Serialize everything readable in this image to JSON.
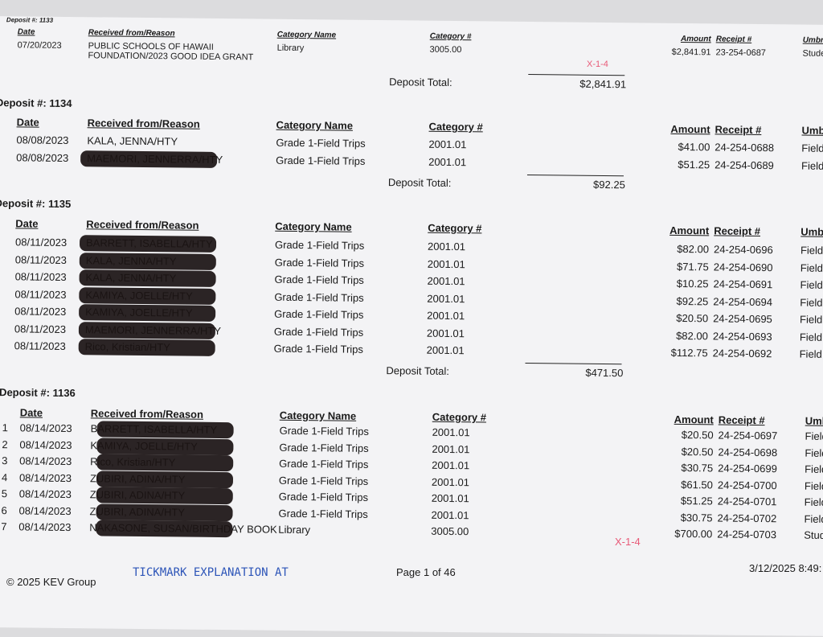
{
  "columns": {
    "date": "Date",
    "received": "Received from/Reason",
    "cat_name": "Category Name",
    "cat_num": "Category #",
    "amount": "Amount",
    "receipt": "Receipt #",
    "umbrella": "Umbrella"
  },
  "deposits": [
    {
      "label": "Deposit #: 1133",
      "total_label": "Deposit Total:",
      "total": "$2,841.91",
      "rows": [
        {
          "n": "",
          "date": "07/20/2023",
          "received": "PUBLIC SCHOOLS OF HAWAII FOUNDATION/2023 GOOD IDEA GRANT",
          "cat_name": "Library",
          "cat_num": "3005.00",
          "amount": "$2,841.91",
          "receipt": "23-254-0687",
          "umbrella": "Student Activity"
        }
      ]
    },
    {
      "label": "Deposit #: 1134",
      "total_label": "Deposit Total:",
      "total": "$92.25",
      "rows": [
        {
          "n": "",
          "date": "08/08/2023",
          "received": "KALA, JENNA/HTY",
          "cat_name": "Grade 1-Field Trips",
          "cat_num": "2001.01",
          "amount": "$41.00",
          "receipt": "24-254-0688",
          "umbrella": "Field Trips"
        },
        {
          "n": "",
          "date": "08/08/2023",
          "received": "MAEMORI, JENNERRA/HTY",
          "cat_name": "Grade 1-Field Trips",
          "cat_num": "2001.01",
          "amount": "$51.25",
          "receipt": "24-254-0689",
          "umbrella": "Field Trips"
        }
      ]
    },
    {
      "label": "Deposit #: 1135",
      "total_label": "Deposit Total:",
      "total": "$471.50",
      "rows": [
        {
          "n": "",
          "date": "08/11/2023",
          "received": "BARRETT, ISABELLA/HTY",
          "cat_name": "Grade 1-Field Trips",
          "cat_num": "2001.01",
          "amount": "$82.00",
          "receipt": "24-254-0696",
          "umbrella": "Field Trips"
        },
        {
          "n": "",
          "date": "08/11/2023",
          "received": "KALA, JENNA/HTY",
          "cat_name": "Grade 1-Field Trips",
          "cat_num": "2001.01",
          "amount": "$71.75",
          "receipt": "24-254-0690",
          "umbrella": "Field Trips"
        },
        {
          "n": "",
          "date": "08/11/2023",
          "received": "KALA, JENNA/HTY",
          "cat_name": "Grade 1-Field Trips",
          "cat_num": "2001.01",
          "amount": "$10.25",
          "receipt": "24-254-0691",
          "umbrella": "Field Trips"
        },
        {
          "n": "",
          "date": "08/11/2023",
          "received": "KAMIYA, JOELLE/HTY",
          "cat_name": "Grade 1-Field Trips",
          "cat_num": "2001.01",
          "amount": "$92.25",
          "receipt": "24-254-0694",
          "umbrella": "Field Trips"
        },
        {
          "n": "",
          "date": "08/11/2023",
          "received": "KAMIYA, JOELLE/HTY",
          "cat_name": "Grade 1-Field Trips",
          "cat_num": "2001.01",
          "amount": "$20.50",
          "receipt": "24-254-0695",
          "umbrella": "Field Trips"
        },
        {
          "n": "",
          "date": "08/11/2023",
          "received": "MAEMORI, JENNERRA/HTY",
          "cat_name": "Grade 1-Field Trips",
          "cat_num": "2001.01",
          "amount": "$82.00",
          "receipt": "24-254-0693",
          "umbrella": "Field Trips"
        },
        {
          "n": "",
          "date": "08/11/2023",
          "received": "Rico, Kristian/HTY",
          "cat_name": "Grade 1-Field Trips",
          "cat_num": "2001.01",
          "amount": "$112.75",
          "receipt": "24-254-0692",
          "umbrella": "Field Trips"
        }
      ]
    },
    {
      "label": "Deposit #: 1136",
      "rows": [
        {
          "n": "1",
          "date": "08/14/2023",
          "received": "BARRETT, ISABELLA/HTY",
          "cat_name": "Grade 1-Field Trips",
          "cat_num": "2001.01",
          "amount": "$20.50",
          "receipt": "24-254-0697",
          "umbrella": "Field Trips"
        },
        {
          "n": "2",
          "date": "08/14/2023",
          "received": "KAMIYA, JOELLE/HTY",
          "cat_name": "Grade 1-Field Trips",
          "cat_num": "2001.01",
          "amount": "$20.50",
          "receipt": "24-254-0698",
          "umbrella": "Field Trips"
        },
        {
          "n": "3",
          "date": "08/14/2023",
          "received": "Rico, Kristian/HTY",
          "cat_name": "Grade 1-Field Trips",
          "cat_num": "2001.01",
          "amount": "$30.75",
          "receipt": "24-254-0699",
          "umbrella": "Field Trips"
        },
        {
          "n": "4",
          "date": "08/14/2023",
          "received": "ZUBIRI, ADINA/HTY",
          "cat_name": "Grade 1-Field Trips",
          "cat_num": "2001.01",
          "amount": "$61.50",
          "receipt": "24-254-0700",
          "umbrella": "Field Trips"
        },
        {
          "n": "5",
          "date": "08/14/2023",
          "received": "ZUBIRI, ADINA/HTY",
          "cat_name": "Grade 1-Field Trips",
          "cat_num": "2001.01",
          "amount": "$51.25",
          "receipt": "24-254-0701",
          "umbrella": "Field Trips"
        },
        {
          "n": "6",
          "date": "08/14/2023",
          "received": "ZUBIRI, ADINA/HTY",
          "cat_name": "Grade 1-Field Trips",
          "cat_num": "2001.01",
          "amount": "$30.75",
          "receipt": "24-254-0702",
          "umbrella": "Field Trips"
        },
        {
          "n": "7",
          "date": "08/14/2023",
          "received": "NAKASONE, SUSAN/BIRTHDAY BOOK",
          "cat_name": "Library",
          "cat_num": "3005.00",
          "amount": "$700.00",
          "receipt": "24-254-0703",
          "umbrella": "Student Activity"
        }
      ]
    }
  ],
  "annotations": {
    "tick1": "X-1-4",
    "tick2": "X-1-4",
    "handwritten": "TICKMARK EXPLANATION AT"
  },
  "footer": {
    "copyright": "© 2025 KEV Group",
    "page": "Page 1 of 46",
    "timestamp": "3/12/2025  8:49:"
  }
}
